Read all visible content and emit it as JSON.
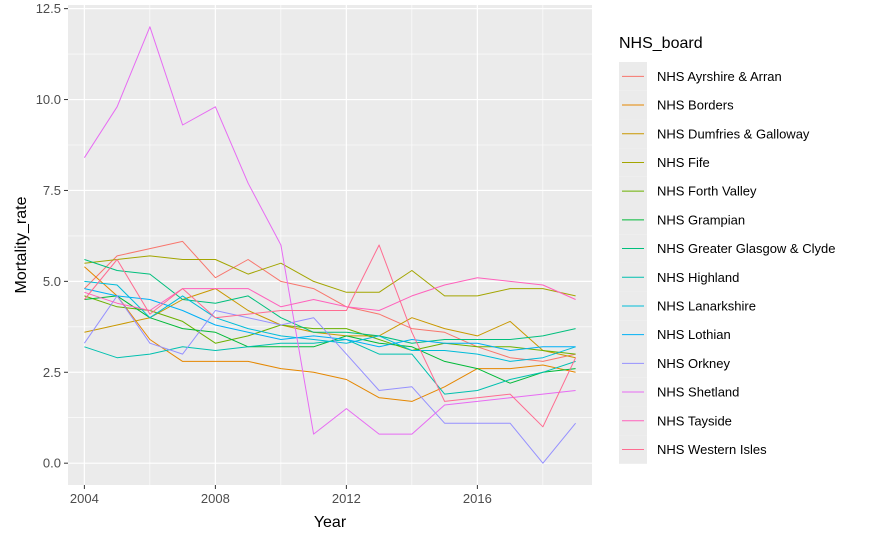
{
  "chart_data": {
    "type": "line",
    "xlabel": "Year",
    "ylabel": "Mortality_rate",
    "xlim": [
      2003.5,
      2019.5
    ],
    "ylim": [
      -0.6,
      12.6
    ],
    "x_ticks": [
      2004,
      2008,
      2012,
      2016
    ],
    "x_tick_labels": [
      "2004",
      "2008",
      "2012",
      "2016"
    ],
    "y_ticks": [
      0,
      2.5,
      5,
      7.5,
      10,
      12.5
    ],
    "y_tick_labels": [
      "0.0",
      "2.5",
      "5.0",
      "7.5",
      "10.0",
      "12.5"
    ],
    "grid": true,
    "legend": {
      "title": "NHS_board",
      "position": "right"
    },
    "x": [
      2004,
      2005,
      2006,
      2007,
      2008,
      2009,
      2010,
      2011,
      2012,
      2013,
      2014,
      2015,
      2016,
      2017,
      2018,
      2019
    ],
    "series": [
      {
        "name": "NHS Ayrshire & Arran",
        "color": "#F8766D",
        "values": [
          4.8,
          5.7,
          5.9,
          6.1,
          5.1,
          5.6,
          5.0,
          4.8,
          4.3,
          4.1,
          3.7,
          3.6,
          3.2,
          2.9,
          2.8,
          3.0
        ]
      },
      {
        "name": "NHS Borders",
        "color": "#E58700",
        "values": [
          5.4,
          4.6,
          3.4,
          2.8,
          2.8,
          2.8,
          2.6,
          2.5,
          2.3,
          1.8,
          1.7,
          2.1,
          2.6,
          2.6,
          2.7,
          2.5
        ]
      },
      {
        "name": "NHS Dumfries & Galloway",
        "color": "#C99800",
        "values": [
          3.6,
          3.8,
          4.0,
          4.5,
          4.8,
          4.2,
          3.8,
          3.6,
          3.5,
          3.5,
          4.0,
          3.7,
          3.5,
          3.9,
          3.1,
          2.9
        ]
      },
      {
        "name": "NHS Fife",
        "color": "#A3A500",
        "values": [
          5.5,
          5.6,
          5.7,
          5.6,
          5.6,
          5.2,
          5.5,
          5.0,
          4.7,
          4.7,
          5.3,
          4.6,
          4.6,
          4.8,
          4.8,
          4.6
        ]
      },
      {
        "name": "NHS Forth Valley",
        "color": "#6BB100",
        "values": [
          4.6,
          4.3,
          4.2,
          3.9,
          3.3,
          3.5,
          3.8,
          3.7,
          3.7,
          3.4,
          3.1,
          3.3,
          3.2,
          3.2,
          3.1,
          3.0
        ]
      },
      {
        "name": "NHS Grampian",
        "color": "#00BA38",
        "values": [
          4.5,
          4.6,
          4.0,
          3.7,
          3.6,
          3.2,
          3.2,
          3.2,
          3.5,
          3.3,
          3.2,
          2.8,
          2.6,
          2.2,
          2.5,
          2.6
        ]
      },
      {
        "name": "NHS Greater Glasgow & Clyde",
        "color": "#00BF7D",
        "values": [
          5.6,
          5.3,
          5.2,
          4.5,
          4.4,
          4.6,
          4.0,
          3.6,
          3.6,
          3.5,
          3.3,
          3.4,
          3.4,
          3.4,
          3.5,
          3.7
        ]
      },
      {
        "name": "NHS Highland",
        "color": "#00C0AF",
        "values": [
          3.2,
          2.9,
          3.0,
          3.2,
          3.1,
          3.2,
          3.3,
          3.3,
          3.4,
          3.0,
          3.0,
          1.9,
          2.0,
          2.3,
          2.5,
          2.8
        ]
      },
      {
        "name": "NHS Lanarkshire",
        "color": "#00BCD8",
        "values": [
          5.0,
          4.9,
          4.0,
          4.6,
          4.0,
          3.7,
          3.5,
          3.4,
          3.3,
          3.5,
          3.1,
          3.1,
          3.0,
          2.8,
          2.9,
          3.2
        ]
      },
      {
        "name": "NHS Lothian",
        "color": "#00B0F6",
        "values": [
          4.8,
          4.6,
          4.5,
          4.2,
          3.8,
          3.6,
          3.4,
          3.5,
          3.4,
          3.2,
          3.4,
          3.3,
          3.3,
          3.1,
          3.2,
          3.2
        ]
      },
      {
        "name": "NHS Orkney",
        "color": "#9590FF",
        "values": [
          3.3,
          4.6,
          3.3,
          3.0,
          4.2,
          4.0,
          3.8,
          4.0,
          3.0,
          2.0,
          2.1,
          1.1,
          1.1,
          1.1,
          0.0,
          1.1
        ]
      },
      {
        "name": "NHS Shetland",
        "color": "#E76BF3",
        "values": [
          8.4,
          9.8,
          12.0,
          9.3,
          9.8,
          7.7,
          6.0,
          0.8,
          1.5,
          0.8,
          0.8,
          1.6,
          1.7,
          1.8,
          1.9,
          2.0
        ]
      },
      {
        "name": "NHS Tayside",
        "color": "#FF62BC",
        "values": [
          4.7,
          4.4,
          4.2,
          4.8,
          4.8,
          4.8,
          4.3,
          4.5,
          4.3,
          4.2,
          4.6,
          4.9,
          5.1,
          5.0,
          4.9,
          4.5
        ]
      },
      {
        "name": "NHS Western Isles",
        "color": "#FF6C91",
        "values": [
          4.5,
          5.6,
          4.1,
          4.8,
          4.0,
          4.1,
          4.2,
          4.2,
          4.2,
          6.0,
          3.6,
          1.7,
          1.8,
          1.9,
          1.0,
          2.9
        ]
      }
    ]
  }
}
